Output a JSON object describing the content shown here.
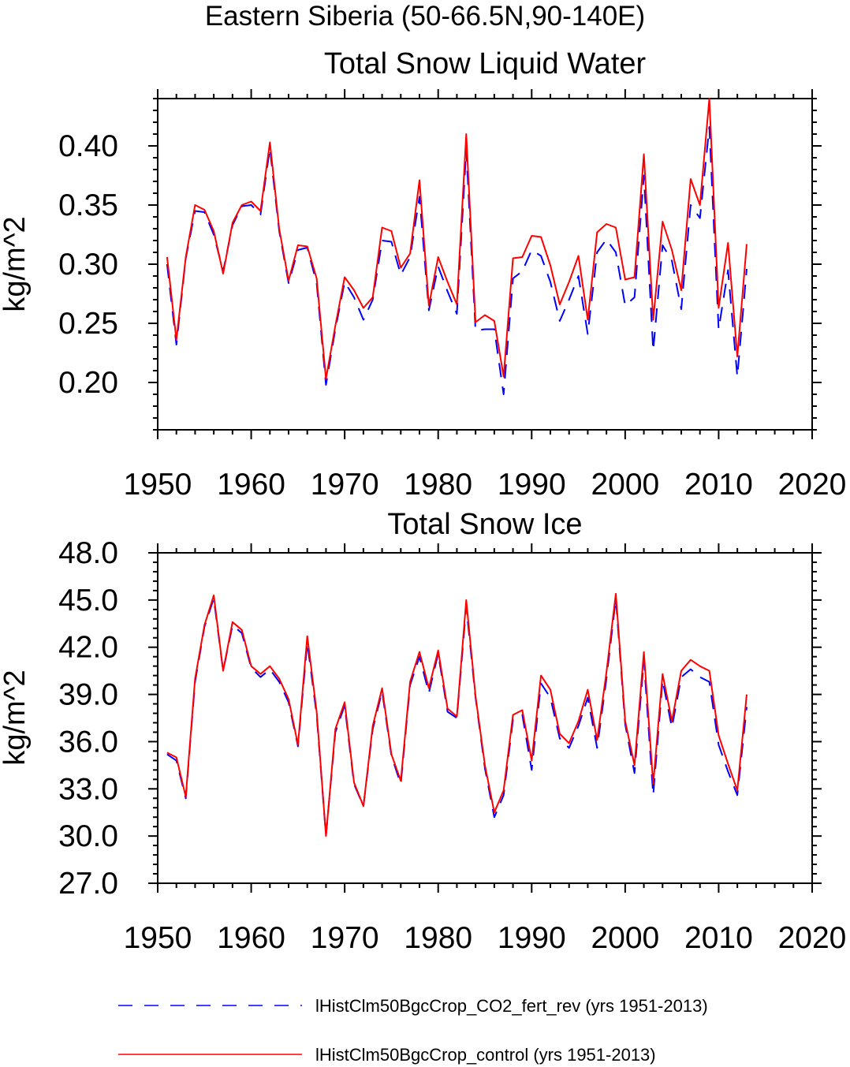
{
  "header": {
    "title": "Eastern Siberia (50-66.5N,90-140E)"
  },
  "colors": {
    "control": "#ff0000",
    "co2_fert": "#0000ff",
    "axis": "#000000"
  },
  "chart_data": [
    {
      "type": "line",
      "title": "Total Snow Liquid Water",
      "xlabel": "",
      "ylabel": "kg/m^2",
      "xlim": [
        1950,
        2020
      ],
      "ylim": [
        0.16,
        0.44
      ],
      "xticks": [
        "1950",
        "1960",
        "1970",
        "1980",
        "1990",
        "2000",
        "2010",
        "2020"
      ],
      "yticks": [
        "0.20",
        "0.25",
        "0.30",
        "0.35",
        "0.40"
      ],
      "grid": false,
      "x_start": 1951,
      "series": [
        {
          "name": "lHistClm50BgcCrop_CO2_fert_rev (yrs 1951-2013)",
          "style": "dashed",
          "values": [
            0.3,
            0.232,
            0.305,
            0.345,
            0.344,
            0.325,
            0.294,
            0.333,
            0.349,
            0.35,
            0.342,
            0.398,
            0.328,
            0.284,
            0.312,
            0.314,
            0.284,
            0.198,
            0.245,
            0.285,
            0.272,
            0.253,
            0.27,
            0.32,
            0.319,
            0.291,
            0.306,
            0.357,
            0.261,
            0.298,
            0.277,
            0.258,
            0.397,
            0.244,
            0.245,
            0.245,
            0.19,
            0.288,
            0.294,
            0.312,
            0.307,
            0.285,
            0.252,
            0.27,
            0.29,
            0.241,
            0.31,
            0.321,
            0.31,
            0.265,
            0.272,
            0.375,
            0.227,
            0.316,
            0.303,
            0.262,
            0.35,
            0.339,
            0.416,
            0.245,
            0.295,
            0.205,
            0.296
          ]
        },
        {
          "name": "lHistClm50BgcCrop_control (yrs 1951-2013)",
          "style": "solid",
          "values": [
            0.306,
            0.236,
            0.306,
            0.35,
            0.346,
            0.328,
            0.292,
            0.335,
            0.35,
            0.353,
            0.345,
            0.403,
            0.33,
            0.286,
            0.316,
            0.315,
            0.288,
            0.203,
            0.248,
            0.289,
            0.278,
            0.263,
            0.272,
            0.331,
            0.328,
            0.297,
            0.309,
            0.371,
            0.265,
            0.306,
            0.285,
            0.266,
            0.41,
            0.251,
            0.257,
            0.252,
            0.205,
            0.305,
            0.306,
            0.324,
            0.323,
            0.299,
            0.266,
            0.285,
            0.307,
            0.253,
            0.327,
            0.334,
            0.331,
            0.287,
            0.289,
            0.393,
            0.253,
            0.336,
            0.312,
            0.278,
            0.372,
            0.35,
            0.44,
            0.263,
            0.318,
            0.222,
            0.317
          ]
        }
      ]
    },
    {
      "type": "line",
      "title": "Total Snow Ice",
      "xlabel": "",
      "ylabel": "kg/m^2",
      "xlim": [
        1950,
        2020
      ],
      "ylim": [
        27.0,
        48.0
      ],
      "xticks": [
        "1950",
        "1960",
        "1970",
        "1980",
        "1990",
        "2000",
        "2010",
        "2020"
      ],
      "yticks": [
        "27.0",
        "30.0",
        "33.0",
        "36.0",
        "39.0",
        "42.0",
        "45.0",
        "48.0"
      ],
      "grid": false,
      "x_start": 1951,
      "series": [
        {
          "name": "lHistClm50BgcCrop_CO2_fert_rev (yrs 1951-2013)",
          "style": "dashed",
          "values": [
            35.2,
            34.8,
            32.4,
            39.8,
            43.3,
            45.1,
            40.5,
            43.4,
            42.9,
            40.7,
            40.1,
            40.6,
            39.8,
            38.5,
            35.7,
            42.3,
            37.7,
            30.0,
            36.6,
            38.3,
            33.3,
            31.9,
            36.8,
            39.2,
            35.1,
            33.3,
            39.6,
            41.4,
            39.1,
            41.6,
            37.9,
            37.5,
            44.6,
            38.8,
            34.3,
            31.2,
            32.6,
            37.4,
            37.7,
            34.2,
            39.7,
            38.8,
            36.2,
            35.6,
            37.0,
            38.8,
            35.6,
            40.0,
            45.1,
            37.1,
            34.0,
            41.2,
            32.6,
            39.9,
            36.9,
            40.1,
            40.6,
            40.1,
            39.8,
            35.8,
            34.1,
            32.6,
            38.2
          ]
        },
        {
          "name": "lHistClm50BgcCrop_control (yrs 1951-2013)",
          "style": "solid",
          "values": [
            35.3,
            35.0,
            32.5,
            40.0,
            43.4,
            45.3,
            40.5,
            43.6,
            43.1,
            40.8,
            40.3,
            40.8,
            40.0,
            38.7,
            35.8,
            42.7,
            37.9,
            30.0,
            36.8,
            38.5,
            33.4,
            31.9,
            37.0,
            39.4,
            35.2,
            33.5,
            39.8,
            41.7,
            39.4,
            41.8,
            38.1,
            37.6,
            45.0,
            38.9,
            34.5,
            31.5,
            32.9,
            37.7,
            38.0,
            34.8,
            40.2,
            39.3,
            36.5,
            35.9,
            37.3,
            39.3,
            36.1,
            40.4,
            45.4,
            37.3,
            34.5,
            41.7,
            33.3,
            40.3,
            37.3,
            40.5,
            41.2,
            40.8,
            40.5,
            36.4,
            34.6,
            32.9,
            39.0
          ]
        }
      ]
    }
  ],
  "legend": {
    "items": [
      {
        "label": "lHistClm50BgcCrop_CO2_fert_rev (yrs 1951-2013)",
        "style": "dashed",
        "color": "#0000ff"
      },
      {
        "label": "lHistClm50BgcCrop_control (yrs 1951-2013)",
        "style": "solid",
        "color": "#ff0000"
      }
    ]
  }
}
